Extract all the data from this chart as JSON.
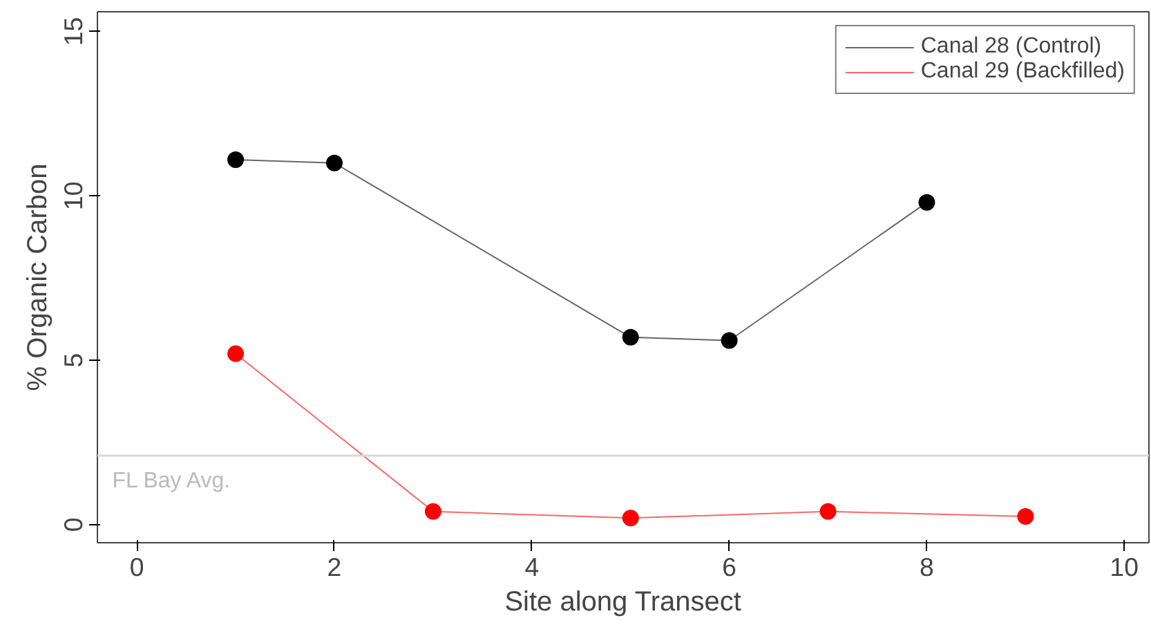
{
  "chart_data": {
    "type": "line",
    "xlabel": "Site along Transect",
    "ylabel": "% Organic Carbon",
    "xlim": [
      -0.4,
      10.25
    ],
    "ylim": [
      -0.55,
      15.6
    ],
    "xticks": [
      0,
      2,
      4,
      6,
      8,
      10
    ],
    "yticks": [
      0,
      5,
      10,
      15
    ],
    "series": [
      {
        "name": "Canal 28 (Control)",
        "color": "#000000",
        "x": [
          1,
          2,
          5,
          6,
          8
        ],
        "values": [
          11.1,
          11.0,
          5.7,
          5.6,
          9.8
        ]
      },
      {
        "name": "Canal 29 (Backfilled)",
        "color": "#ff0000",
        "x": [
          1,
          3,
          5,
          7,
          9
        ],
        "values": [
          5.2,
          0.4,
          0.2,
          0.4,
          0.25
        ]
      }
    ],
    "ref_lines": [
      {
        "axis": "y",
        "value": 2.1,
        "label": "FL Bay Avg.",
        "color": "#d9d9d9"
      }
    ],
    "marker": "circle",
    "line_style": "solid",
    "grid": false,
    "legend": "top right"
  }
}
